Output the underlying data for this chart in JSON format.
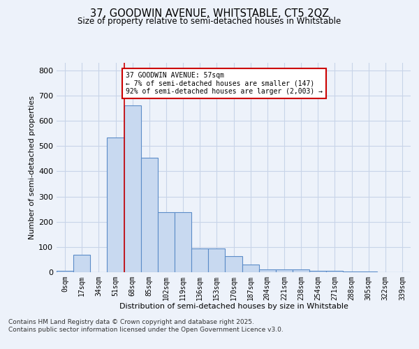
{
  "title_line1": "37, GOODWIN AVENUE, WHITSTABLE, CT5 2QZ",
  "title_line2": "Size of property relative to semi-detached houses in Whitstable",
  "xlabel": "Distribution of semi-detached houses by size in Whitstable",
  "ylabel": "Number of semi-detached properties",
  "categories": [
    "0sqm",
    "17sqm",
    "34sqm",
    "51sqm",
    "68sqm",
    "85sqm",
    "102sqm",
    "119sqm",
    "136sqm",
    "153sqm",
    "170sqm",
    "187sqm",
    "204sqm",
    "221sqm",
    "238sqm",
    "254sqm",
    "271sqm",
    "288sqm",
    "305sqm",
    "322sqm",
    "339sqm"
  ],
  "values": [
    5,
    70,
    0,
    535,
    660,
    455,
    237,
    237,
    95,
    95,
    65,
    30,
    10,
    10,
    10,
    5,
    5,
    3,
    2,
    0,
    0
  ],
  "bar_color": "#c8d9f0",
  "bar_edge_color": "#5b8cc8",
  "grid_color": "#c8d4e8",
  "background_color": "#edf2fa",
  "vline_x": 3.5,
  "vline_color": "#cc0000",
  "annotation_text": "37 GOODWIN AVENUE: 57sqm\n← 7% of semi-detached houses are smaller (147)\n92% of semi-detached houses are larger (2,003) →",
  "annotation_box_facecolor": "#ffffff",
  "annotation_box_edgecolor": "#cc0000",
  "footer_text": "Contains HM Land Registry data © Crown copyright and database right 2025.\nContains public sector information licensed under the Open Government Licence v3.0.",
  "ylim": [
    0,
    830
  ],
  "yticks": [
    0,
    100,
    200,
    300,
    400,
    500,
    600,
    700,
    800
  ]
}
